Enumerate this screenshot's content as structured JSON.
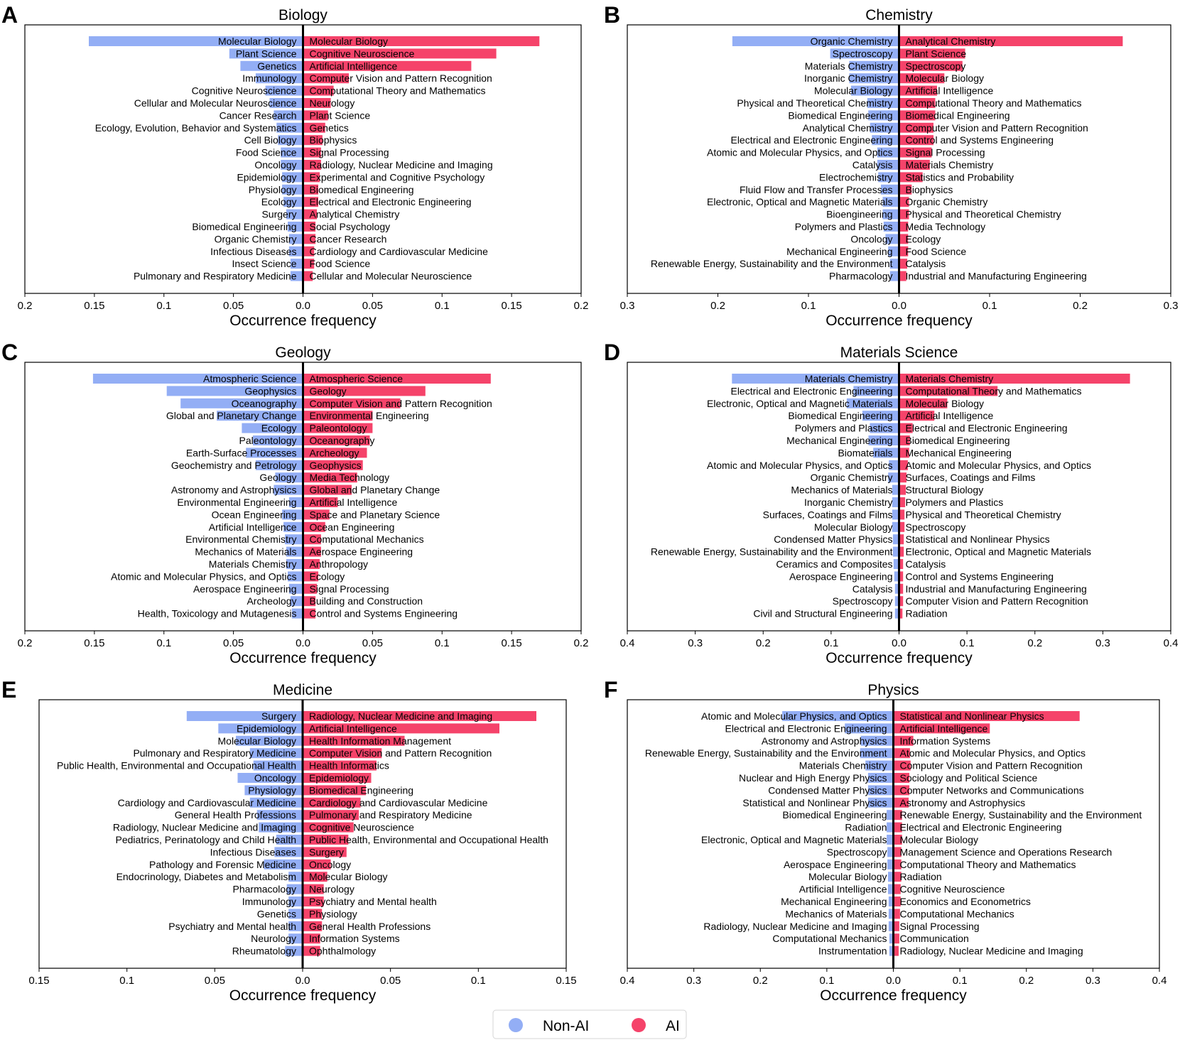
{
  "colors": {
    "non_ai": "#93aef5",
    "ai": "#f5436a",
    "axis": "#000000"
  },
  "legend": {
    "items": [
      {
        "label": "Non-AI",
        "color": "#93aef5"
      },
      {
        "label": "AI",
        "color": "#f5436a"
      }
    ],
    "placement": "bottom-center"
  },
  "chart_data": [
    {
      "letter": "A",
      "title": "Biology",
      "type": "bar",
      "orientation": "diverging-horizontal",
      "xlabel": "Occurrence frequency",
      "xlim": [
        -0.2,
        0.2
      ],
      "xticks": [
        -0.2,
        -0.15,
        -0.1,
        -0.05,
        0,
        0.05,
        0.1,
        0.15,
        0.2
      ],
      "xtick_labels": [
        "0.2",
        "0.15",
        "0.1",
        "0.05",
        "0.0",
        "0.05",
        "0.1",
        "0.15",
        "0.2"
      ],
      "series": [
        {
          "name": "Non-AI",
          "side": "left",
          "categories": [
            "Molecular Biology",
            "Plant Science",
            "Genetics",
            "Immunology",
            "Cognitive Neuroscience",
            "Cellular and Molecular Neuroscience",
            "Cancer Research",
            "Ecology, Evolution, Behavior and Systematics",
            "Cell Biology",
            "Food Science",
            "Oncology",
            "Epidemiology",
            "Physiology",
            "Ecology",
            "Surgery",
            "Biomedical Engineering",
            "Organic Chemistry",
            "Infectious Diseases",
            "Insect Science",
            "Pulmonary and Respiratory Medicine"
          ],
          "values": [
            0.154,
            0.053,
            0.045,
            0.034,
            0.027,
            0.024,
            0.021,
            0.019,
            0.018,
            0.016,
            0.016,
            0.015,
            0.015,
            0.014,
            0.012,
            0.011,
            0.01,
            0.01,
            0.009,
            0.009
          ]
        },
        {
          "name": "AI",
          "side": "right",
          "categories": [
            "Molecular Biology",
            "Cognitive Neuroscience",
            "Artificial Intelligence",
            "Computer Vision and Pattern Recognition",
            "Computational Theory and Mathematics",
            "Neurology",
            "Plant Science",
            "Genetics",
            "Biophysics",
            "Signal Processing",
            "Radiology, Nuclear Medicine and Imaging",
            "Experimental and Cognitive Psychology",
            "Biomedical Engineering",
            "Electrical and Electronic Engineering",
            "Analytical Chemistry",
            "Social Psychology",
            "Cancer Research",
            "Cardiology and Cardiovascular Medicine",
            "Food Science",
            "Cellular and Molecular Neuroscience"
          ],
          "values": [
            0.17,
            0.139,
            0.121,
            0.033,
            0.022,
            0.02,
            0.018,
            0.016,
            0.014,
            0.013,
            0.013,
            0.012,
            0.011,
            0.011,
            0.01,
            0.009,
            0.009,
            0.008,
            0.008,
            0.007
          ]
        }
      ]
    },
    {
      "letter": "B",
      "title": "Chemistry",
      "type": "bar",
      "orientation": "diverging-horizontal",
      "xlabel": "Occurrence frequency",
      "xlim": [
        -0.3,
        0.3
      ],
      "xticks": [
        -0.3,
        -0.2,
        -0.1,
        0,
        0.1,
        0.2,
        0.3
      ],
      "xtick_labels": [
        "0.3",
        "0.2",
        "0.1",
        "0.0",
        "0.1",
        "0.2",
        "0.3"
      ],
      "series": [
        {
          "name": "Non-AI",
          "side": "left",
          "categories": [
            "Organic Chemistry",
            "Spectroscopy",
            "Materials Chemistry",
            "Inorganic Chemistry",
            "Molecular Biology",
            "Physical and Theoretical Chemistry",
            "Biomedical Engineering",
            "Analytical Chemistry",
            "Electrical and Electronic Engineering",
            "Atomic and Molecular Physics, and Optics",
            "Catalysis",
            "Electrochemistry",
            "Fluid Flow and Transfer Processes",
            "Electronic, Optical and Magnetic Materials",
            "Bioengineering",
            "Polymers and Plastics",
            "Oncology",
            "Mechanical Engineering",
            "Renewable Energy, Sustainability and the Environment",
            "Pharmacology"
          ],
          "values": [
            0.184,
            0.076,
            0.055,
            0.055,
            0.053,
            0.035,
            0.034,
            0.032,
            0.03,
            0.024,
            0.024,
            0.023,
            0.02,
            0.018,
            0.018,
            0.017,
            0.015,
            0.012,
            0.01,
            0.01
          ]
        },
        {
          "name": "AI",
          "side": "right",
          "categories": [
            "Analytical Chemistry",
            "Plant Science",
            "Spectroscopy",
            "Molecular Biology",
            "Artificial Intelligence",
            "Computational Theory and Mathematics",
            "Biomedical Engineering",
            "Computer Vision and Pattern Recognition",
            "Control and Systems Engineering",
            "Signal Processing",
            "Materials Chemistry",
            "Statistics and Probability",
            "Biophysics",
            "Organic Chemistry",
            "Physical and Theoretical Chemistry",
            "Media Technology",
            "Ecology",
            "Food Science",
            "Catalysis",
            "Industrial and Manufacturing Engineering"
          ],
          "values": [
            0.247,
            0.073,
            0.07,
            0.05,
            0.042,
            0.04,
            0.04,
            0.038,
            0.038,
            0.036,
            0.034,
            0.026,
            0.014,
            0.011,
            0.011,
            0.01,
            0.01,
            0.01,
            0.009,
            0.008
          ]
        }
      ]
    },
    {
      "letter": "C",
      "title": "Geology",
      "type": "bar",
      "orientation": "diverging-horizontal",
      "xlabel": "Occurrence frequency",
      "xlim": [
        -0.2,
        0.2
      ],
      "xticks": [
        -0.2,
        -0.15,
        -0.1,
        -0.05,
        0,
        0.05,
        0.1,
        0.15,
        0.2
      ],
      "xtick_labels": [
        "0.2",
        "0.15",
        "0.1",
        "0.05",
        "0.0",
        "0.05",
        "0.1",
        "0.15",
        "0.2"
      ],
      "series": [
        {
          "name": "Non-AI",
          "side": "left",
          "categories": [
            "Atmospheric Science",
            "Geophysics",
            "Oceanography",
            "Global and Planetary Change",
            "Ecology",
            "Paleontology",
            "Earth-Surface Processes",
            "Geochemistry and Petrology",
            "Geology",
            "Astronomy and Astrophysics",
            "Environmental Engineering",
            "Ocean Engineering",
            "Artificial Intelligence",
            "Environmental Chemistry",
            "Mechanics of Materials",
            "Materials Chemistry",
            "Atomic and Molecular Physics, and Optics",
            "Aerospace Engineering",
            "Archeology",
            "Health, Toxicology and Mutagenesis"
          ],
          "values": [
            0.151,
            0.098,
            0.088,
            0.062,
            0.044,
            0.036,
            0.041,
            0.034,
            0.02,
            0.021,
            0.01,
            0.015,
            0.014,
            0.013,
            0.012,
            0.012,
            0.011,
            0.01,
            0.009,
            0.008
          ]
        },
        {
          "name": "AI",
          "side": "right",
          "categories": [
            "Atmospheric Science",
            "Geology",
            "Computer Vision and Pattern Recognition",
            "Environmental Engineering",
            "Paleontology",
            "Oceanography",
            "Archeology",
            "Geophysics",
            "Media Technology",
            "Global and Planetary Change",
            "Artificial Intelligence",
            "Space and Planetary Science",
            "Ocean Engineering",
            "Computational Mechanics",
            "Aerospace Engineering",
            "Anthropology",
            "Ecology",
            "Signal Processing",
            "Building and Construction",
            "Control and Systems Engineering"
          ],
          "values": [
            0.135,
            0.088,
            0.07,
            0.05,
            0.05,
            0.048,
            0.046,
            0.043,
            0.039,
            0.035,
            0.025,
            0.019,
            0.016,
            0.013,
            0.013,
            0.012,
            0.011,
            0.01,
            0.009,
            0.009
          ]
        }
      ]
    },
    {
      "letter": "D",
      "title": "Materials Science",
      "type": "bar",
      "orientation": "diverging-horizontal",
      "xlabel": "Occurrence frequency",
      "xlim": [
        -0.4,
        0.4
      ],
      "xticks": [
        -0.4,
        -0.3,
        -0.2,
        -0.1,
        0,
        0.1,
        0.2,
        0.3,
        0.4
      ],
      "xtick_labels": [
        "0.4",
        "0.3",
        "0.2",
        "0.1",
        "0.0",
        "0.1",
        "0.2",
        "0.3",
        "0.4"
      ],
      "series": [
        {
          "name": "Non-AI",
          "side": "left",
          "categories": [
            "Materials Chemistry",
            "Electrical and Electronic Engineering",
            "Electronic, Optical and Magnetic Materials",
            "Biomedical Engineering",
            "Polymers and Plastics",
            "Mechanical Engineering",
            "Biomaterials",
            "Atomic and Molecular Physics, and Optics",
            "Organic Chemistry",
            "Mechanics of Materials",
            "Inorganic Chemistry",
            "Surfaces, Coatings and Films",
            "Molecular Biology",
            "Condensed Matter Physics",
            "Renewable Energy, Sustainability and the Environment",
            "Ceramics and Composites",
            "Aerospace Engineering",
            "Catalysis",
            "Spectroscopy",
            "Civil and Structural Engineering"
          ],
          "values": [
            0.246,
            0.067,
            0.077,
            0.054,
            0.043,
            0.045,
            0.038,
            0.015,
            0.016,
            0.01,
            0.01,
            0.01,
            0.01,
            0.009,
            0.009,
            0.008,
            0.007,
            0.006,
            0.006,
            0.006
          ]
        },
        {
          "name": "AI",
          "side": "right",
          "categories": [
            "Materials Chemistry",
            "Computational Theory and Mathematics",
            "Molecular Biology",
            "Artificial Intelligence",
            "Electrical and Electronic Engineering",
            "Biomedical Engineering",
            "Mechanical Engineering",
            "Atomic and Molecular Physics, and Optics",
            "Surfaces, Coatings and Films",
            "Structural Biology",
            "Polymers and Plastics",
            "Physical and Theoretical Chemistry",
            "Spectroscopy",
            "Statistical and Nonlinear Physics",
            "Electronic, Optical and Magnetic Materials",
            "Catalysis",
            "Control and Systems Engineering",
            "Industrial and Manufacturing Engineering",
            "Computer Vision and Pattern Recognition",
            "Radiation"
          ],
          "values": [
            0.34,
            0.145,
            0.071,
            0.052,
            0.02,
            0.016,
            0.015,
            0.013,
            0.011,
            0.01,
            0.009,
            0.008,
            0.008,
            0.007,
            0.007,
            0.006,
            0.006,
            0.006,
            0.006,
            0.005
          ]
        }
      ]
    },
    {
      "letter": "E",
      "title": "Medicine",
      "type": "bar",
      "orientation": "diverging-horizontal",
      "xlabel": "Occurrence frequency",
      "xlim": [
        -0.15,
        0.15
      ],
      "xticks": [
        -0.15,
        -0.1,
        -0.05,
        0,
        0.05,
        0.1,
        0.15
      ],
      "xtick_labels": [
        "0.15",
        "0.1",
        "0.05",
        "0.0",
        "0.05",
        "0.1",
        "0.15"
      ],
      "series": [
        {
          "name": "Non-AI",
          "side": "left",
          "categories": [
            "Surgery",
            "Epidemiology",
            "Molecular Biology",
            "Pulmonary and Respiratory Medicine",
            "Public Health, Environmental and Occupational Health",
            "Oncology",
            "Physiology",
            "Cardiology and Cardiovascular Medicine",
            "General Health Professions",
            "Radiology, Nuclear Medicine and Imaging",
            "Pediatrics, Perinatology and Child Health",
            "Infectious Diseases",
            "Pathology and Forensic Medicine",
            "Endocrinology, Diabetes and Metabolism",
            "Pharmacology",
            "Immunology",
            "Genetics",
            "Psychiatry and Mental health",
            "Neurology",
            "Rheumatology"
          ],
          "values": [
            0.066,
            0.048,
            0.038,
            0.03,
            0.028,
            0.037,
            0.033,
            0.03,
            0.026,
            0.025,
            0.015,
            0.016,
            0.022,
            0.008,
            0.009,
            0.008,
            0.008,
            0.008,
            0.008,
            0.01
          ]
        },
        {
          "name": "AI",
          "side": "right",
          "categories": [
            "Radiology, Nuclear Medicine and Imaging",
            "Artificial Intelligence",
            "Health Information Management",
            "Computer Vision and Pattern Recognition",
            "Health Informatics",
            "Epidemiology",
            "Biomedical Engineering",
            "Cardiology and Cardiovascular Medicine",
            "Pulmonary and Respiratory Medicine",
            "Cognitive Neuroscience",
            "Public Health, Environmental and Occupational Health",
            "Surgery",
            "Oncology",
            "Molecular Biology",
            "Neurology",
            "Psychiatry and Mental health",
            "Physiology",
            "General Health Professions",
            "Information Systems",
            "Ophthalmology"
          ],
          "values": [
            0.133,
            0.112,
            0.058,
            0.045,
            0.042,
            0.039,
            0.036,
            0.033,
            0.032,
            0.029,
            0.026,
            0.025,
            0.016,
            0.014,
            0.012,
            0.012,
            0.011,
            0.011,
            0.01,
            0.01
          ]
        }
      ]
    },
    {
      "letter": "F",
      "title": "Physics",
      "type": "bar",
      "orientation": "diverging-horizontal",
      "xlabel": "Occurrence frequency",
      "xlim": [
        -0.4,
        0.4
      ],
      "xticks": [
        -0.4,
        -0.3,
        -0.2,
        -0.1,
        0,
        0.1,
        0.2,
        0.3,
        0.4
      ],
      "xtick_labels": [
        "0.4",
        "0.3",
        "0.2",
        "0.1",
        "0.0",
        "0.1",
        "0.2",
        "0.3",
        "0.4"
      ],
      "series": [
        {
          "name": "Non-AI",
          "side": "left",
          "categories": [
            "Atomic and Molecular Physics, and Optics",
            "Electrical and Electronic Engineering",
            "Astronomy and Astrophysics",
            "Renewable Energy, Sustainability and the Environment",
            "Materials Chemistry",
            "Nuclear and High Energy Physics",
            "Condensed Matter Physics",
            "Statistical and Nonlinear Physics",
            "Biomedical Engineering",
            "Radiation",
            "Electronic, Optical and Magnetic Materials",
            "Spectroscopy",
            "Aerospace Engineering",
            "Molecular Biology",
            "Artificial Intelligence",
            "Mechanical Engineering",
            "Mechanics of Materials",
            "Radiology, Nuclear Medicine and Imaging",
            "Computational Mechanics",
            "Instrumentation"
          ],
          "values": [
            0.167,
            0.073,
            0.049,
            0.05,
            0.042,
            0.038,
            0.038,
            0.038,
            0.01,
            0.01,
            0.01,
            0.009,
            0.009,
            0.008,
            0.008,
            0.007,
            0.007,
            0.007,
            0.006,
            0.006
          ]
        },
        {
          "name": "AI",
          "side": "right",
          "categories": [
            "Statistical and Nonlinear Physics",
            "Artificial Intelligence",
            "Information Systems",
            "Atomic and Molecular Physics, and Optics",
            "Computer Vision and Pattern Recognition",
            "Sociology and Political Science",
            "Computer Networks and Communications",
            "Astronomy and Astrophysics",
            "Renewable Energy, Sustainability and the Environment",
            "Electrical and Electronic Engineering",
            "Molecular Biology",
            "Management Science and Operations Research",
            "Computational Theory and Mathematics",
            "Radiation",
            "Cognitive Neuroscience",
            "Economics and Econometrics",
            "Computational Mechanics",
            "Signal Processing",
            "Communication",
            "Radiology, Nuclear Medicine and Imaging"
          ],
          "values": [
            0.28,
            0.145,
            0.03,
            0.025,
            0.026,
            0.024,
            0.024,
            0.023,
            0.013,
            0.013,
            0.013,
            0.012,
            0.012,
            0.012,
            0.011,
            0.011,
            0.01,
            0.009,
            0.009,
            0.008
          ]
        }
      ]
    }
  ]
}
